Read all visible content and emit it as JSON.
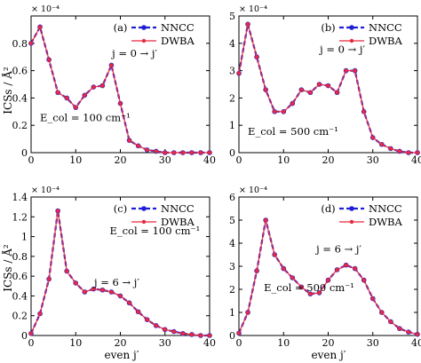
{
  "figure": {
    "ylabel": "ICSs / Å²",
    "xlabel": "even j′"
  },
  "colors": {
    "nncc": "#1f1fd6",
    "dwba": "#e8283c"
  },
  "chart_data": [
    {
      "type": "line",
      "panel_label": "(a)",
      "exponent_label": "× 10⁻⁴",
      "annotations": {
        "transition": "j = 0 → j′",
        "energy": "E_col = 100 cm⁻¹"
      },
      "legend": [
        "NNCC",
        "DWBA"
      ],
      "legend_position": "top-right",
      "xlim": [
        0,
        40
      ],
      "ylim": [
        0,
        1.0
      ],
      "x_ticks": [
        0,
        10,
        20,
        30,
        40
      ],
      "y_ticks": [
        0,
        0.2,
        0.4,
        0.6,
        0.8
      ],
      "x": [
        0,
        2,
        4,
        6,
        8,
        10,
        12,
        14,
        16,
        18,
        20,
        22,
        24,
        26,
        28,
        30,
        32,
        34,
        36,
        38,
        40
      ],
      "series": [
        {
          "name": "NNCC",
          "values": [
            0.8,
            0.92,
            0.68,
            0.44,
            0.4,
            0.33,
            0.42,
            0.48,
            0.49,
            0.64,
            0.36,
            0.09,
            0.05,
            0.02,
            0.01,
            0.0,
            0.0,
            0.0,
            0.0,
            0.0,
            0.0
          ]
        },
        {
          "name": "DWBA",
          "values": [
            0.8,
            0.92,
            0.68,
            0.44,
            0.4,
            0.33,
            0.42,
            0.48,
            0.49,
            0.64,
            0.36,
            0.09,
            0.05,
            0.02,
            0.01,
            0.0,
            0.0,
            0.0,
            0.0,
            0.0,
            0.0
          ]
        }
      ]
    },
    {
      "type": "line",
      "panel_label": "(b)",
      "exponent_label": "× 10⁻⁴",
      "annotations": {
        "transition": "j = 0 → j′",
        "energy": "E_col = 500 cm⁻¹"
      },
      "legend": [
        "NNCC",
        "DWBA"
      ],
      "legend_position": "top-right",
      "xlim": [
        0,
        40
      ],
      "ylim": [
        0,
        5
      ],
      "x_ticks": [
        0,
        10,
        20,
        30,
        40
      ],
      "y_ticks": [
        0,
        1,
        2,
        3,
        4,
        5
      ],
      "x": [
        0,
        2,
        4,
        6,
        8,
        10,
        12,
        14,
        16,
        18,
        20,
        22,
        24,
        26,
        28,
        30,
        32,
        34,
        36,
        38,
        40
      ],
      "series": [
        {
          "name": "NNCC",
          "values": [
            2.9,
            4.7,
            3.5,
            2.3,
            1.5,
            1.5,
            1.8,
            2.3,
            2.2,
            2.5,
            2.45,
            2.2,
            3.0,
            3.0,
            1.5,
            0.55,
            0.3,
            0.15,
            0.05,
            0.0,
            0.0
          ]
        },
        {
          "name": "DWBA",
          "values": [
            2.9,
            4.7,
            3.5,
            2.3,
            1.5,
            1.5,
            1.8,
            2.3,
            2.2,
            2.5,
            2.45,
            2.2,
            3.0,
            3.0,
            1.5,
            0.55,
            0.3,
            0.15,
            0.05,
            0.0,
            0.0
          ]
        }
      ]
    },
    {
      "type": "line",
      "panel_label": "(c)",
      "exponent_label": "× 10⁻⁴",
      "annotations": {
        "transition": "j = 6 → j′",
        "energy": "E_col = 100 cm⁻¹"
      },
      "legend": [
        "NNCC",
        "DWBA"
      ],
      "legend_position": "top-right",
      "xlim": [
        0,
        40
      ],
      "ylim": [
        0,
        1.4
      ],
      "x_ticks": [
        0,
        10,
        20,
        30,
        40
      ],
      "y_ticks": [
        0,
        0.2,
        0.4,
        0.6,
        0.8,
        1.0,
        1.2,
        1.4
      ],
      "x": [
        0,
        2,
        4,
        6,
        8,
        10,
        12,
        14,
        16,
        18,
        20,
        22,
        24,
        26,
        28,
        30,
        32,
        34,
        36,
        38,
        40
      ],
      "series": [
        {
          "name": "NNCC",
          "values": [
            0.02,
            0.22,
            0.57,
            1.26,
            0.65,
            0.53,
            0.44,
            0.47,
            0.46,
            0.44,
            0.4,
            0.33,
            0.24,
            0.16,
            0.1,
            0.06,
            0.04,
            0.02,
            0.01,
            0.0,
            0.0
          ]
        },
        {
          "name": "DWBA",
          "values": [
            0.02,
            0.22,
            0.57,
            1.26,
            0.65,
            0.53,
            0.44,
            0.47,
            0.46,
            0.44,
            0.4,
            0.33,
            0.24,
            0.16,
            0.1,
            0.06,
            0.04,
            0.02,
            0.01,
            0.0,
            0.0
          ]
        }
      ]
    },
    {
      "type": "line",
      "panel_label": "(d)",
      "exponent_label": "× 10⁻⁴",
      "annotations": {
        "transition": "j = 6 → j′",
        "energy": "E_col = 500 cm⁻¹"
      },
      "legend": [
        "NNCC",
        "DWBA"
      ],
      "legend_position": "top-right",
      "xlim": [
        0,
        40
      ],
      "ylim": [
        0,
        6
      ],
      "x_ticks": [
        0,
        10,
        20,
        30,
        40
      ],
      "y_ticks": [
        0,
        1,
        2,
        3,
        4,
        5,
        6
      ],
      "x": [
        0,
        2,
        4,
        6,
        8,
        10,
        12,
        14,
        16,
        18,
        20,
        22,
        24,
        26,
        28,
        30,
        32,
        34,
        36,
        38,
        40
      ],
      "series": [
        {
          "name": "NNCC",
          "values": [
            0.1,
            1.0,
            2.8,
            5.0,
            3.5,
            2.9,
            2.5,
            2.1,
            1.8,
            1.85,
            2.4,
            2.85,
            3.05,
            2.9,
            2.4,
            1.6,
            1.0,
            0.6,
            0.3,
            0.15,
            0.05
          ]
        },
        {
          "name": "DWBA",
          "values": [
            0.1,
            1.0,
            2.8,
            5.0,
            3.5,
            2.9,
            2.5,
            2.1,
            1.8,
            1.85,
            2.4,
            2.85,
            3.05,
            2.9,
            2.4,
            1.6,
            1.0,
            0.6,
            0.3,
            0.15,
            0.05
          ]
        }
      ]
    }
  ]
}
